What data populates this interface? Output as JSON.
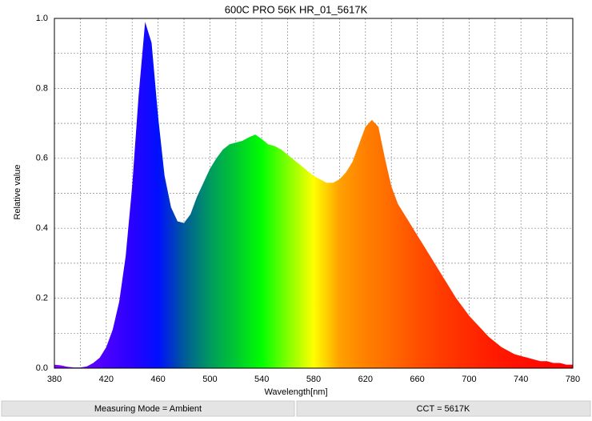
{
  "chart_data": {
    "type": "area",
    "title": "600C PRO 56K HR_01_5617K",
    "x_label": "Wavelength[nm]",
    "y_label": "Relative value",
    "x": [
      380,
      385,
      390,
      395,
      400,
      405,
      410,
      415,
      420,
      425,
      430,
      435,
      440,
      445,
      450,
      455,
      460,
      465,
      470,
      475,
      480,
      485,
      490,
      495,
      500,
      505,
      510,
      515,
      520,
      525,
      530,
      535,
      540,
      545,
      550,
      555,
      560,
      565,
      570,
      575,
      580,
      585,
      590,
      595,
      600,
      605,
      610,
      615,
      620,
      625,
      630,
      635,
      640,
      645,
      650,
      655,
      660,
      665,
      670,
      675,
      680,
      685,
      690,
      695,
      700,
      705,
      710,
      715,
      720,
      725,
      730,
      735,
      740,
      745,
      750,
      755,
      760,
      765,
      770,
      775,
      780
    ],
    "values": [
      0.01,
      0.008,
      0.004,
      0.002,
      0.002,
      0.005,
      0.015,
      0.03,
      0.06,
      0.11,
      0.19,
      0.32,
      0.52,
      0.78,
      0.99,
      0.93,
      0.72,
      0.55,
      0.46,
      0.42,
      0.415,
      0.44,
      0.49,
      0.53,
      0.57,
      0.6,
      0.625,
      0.64,
      0.645,
      0.65,
      0.66,
      0.668,
      0.655,
      0.64,
      0.635,
      0.625,
      0.61,
      0.595,
      0.58,
      0.565,
      0.55,
      0.54,
      0.53,
      0.53,
      0.54,
      0.56,
      0.59,
      0.64,
      0.69,
      0.71,
      0.69,
      0.6,
      0.52,
      0.47,
      0.44,
      0.41,
      0.38,
      0.35,
      0.32,
      0.29,
      0.26,
      0.23,
      0.2,
      0.175,
      0.15,
      0.13,
      0.11,
      0.09,
      0.075,
      0.06,
      0.05,
      0.04,
      0.035,
      0.03,
      0.025,
      0.02,
      0.02,
      0.015,
      0.015,
      0.01,
      0.01
    ],
    "gradient_colors": [
      "#8000ff",
      "#6a00ff",
      "#4a00ff",
      "#2a00ff",
      "#0010ff",
      "#005a9a",
      "#009a60",
      "#00c830",
      "#00ff00",
      "#80ff00",
      "#ffff00",
      "#ffa000",
      "#ff8000",
      "#ff6a00",
      "#ff5000",
      "#ff3a00",
      "#ff2a00",
      "#ff1a00",
      "#ff1000",
      "#ff0800",
      "#ff0000"
    ],
    "xlim": [
      380,
      780
    ],
    "xticks": [
      380,
      420,
      460,
      500,
      540,
      580,
      620,
      660,
      700,
      740,
      780
    ],
    "ylim": [
      0,
      1
    ],
    "yticks": [
      {
        "value": 0,
        "label": "0.0"
      },
      0.2,
      0.4,
      0.6,
      0.8,
      {
        "value": 1,
        "label": "1.0"
      }
    ],
    "grid": true,
    "minor_grid": true,
    "footer": [
      "Measuring Mode = Ambient",
      "CCT = 5617K"
    ]
  }
}
